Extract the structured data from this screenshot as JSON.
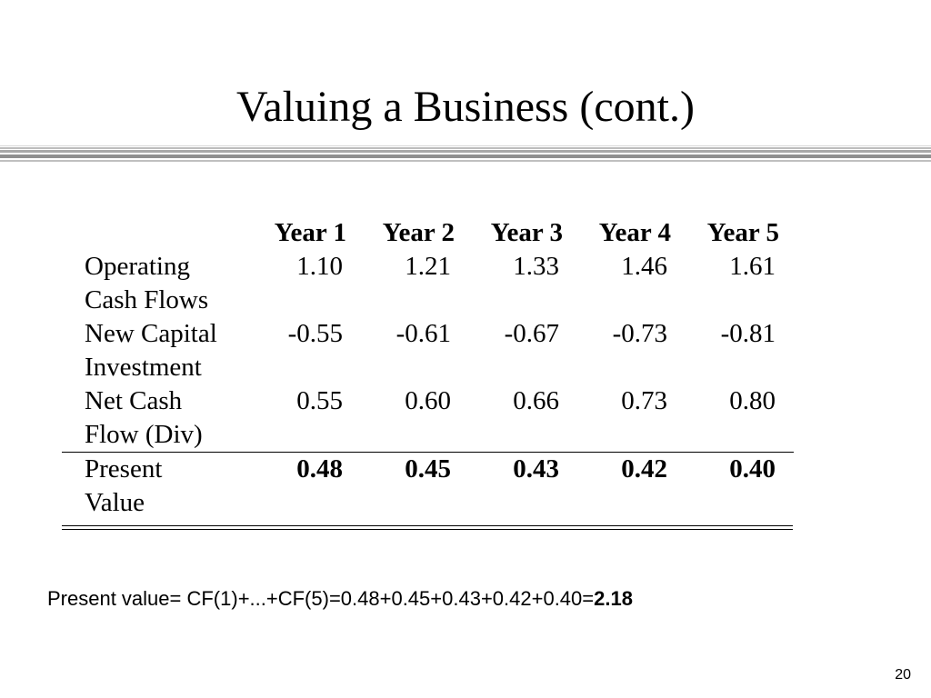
{
  "slide": {
    "title": "Valuing a Business (cont.)",
    "page_number": "20"
  },
  "table": {
    "headers": [
      "Year 1",
      "Year 2",
      "Year 3",
      "Year 4",
      "Year 5"
    ],
    "rows": [
      {
        "label_line1": "Operating",
        "label_line2": "Cash Flows",
        "values": [
          "1.10",
          "1.21",
          "1.33",
          "1.46",
          "1.61"
        ]
      },
      {
        "label_line1": "New Capital",
        "label_line2": "Investment",
        "values": [
          "-0.55",
          "-0.61",
          "-0.67",
          "-0.73",
          "-0.81"
        ]
      },
      {
        "label_line1": "Net Cash",
        "label_line2": "Flow (Div)",
        "values": [
          "0.55",
          "0.60",
          "0.66",
          "0.73",
          "0.80"
        ]
      },
      {
        "label_line1": "Present",
        "label_line2": "Value",
        "values": [
          "0.48",
          "0.45",
          "0.43",
          "0.42",
          "0.40"
        ]
      }
    ]
  },
  "formula": {
    "text": "Present value= CF(1)+...+CF(5)=0.48+0.45+0.43+0.42+0.40=",
    "result": "2.18"
  },
  "colors": {
    "rule_light": "#c8c8c8",
    "rule_dark": "#8c8c8c"
  }
}
